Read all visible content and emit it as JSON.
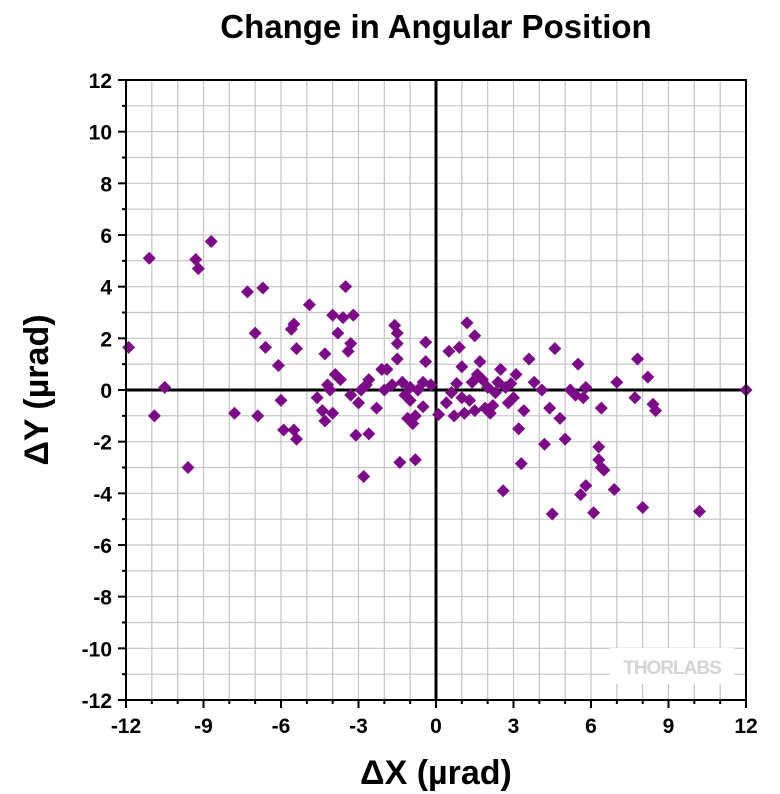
{
  "chart_data": {
    "type": "scatter",
    "title": "Change in Angular Position",
    "xlabel": "ΔX (µrad)",
    "ylabel": "ΔY (µrad)",
    "xlim": [
      -12,
      12
    ],
    "ylim": [
      -12,
      12
    ],
    "xticks": [
      "-12",
      "-9",
      "-6",
      "-3",
      "0",
      "3",
      "6",
      "9",
      "12"
    ],
    "yticks": [
      "12",
      "10",
      "8",
      "6",
      "4",
      "2",
      "0",
      "-2",
      "-4",
      "-6",
      "-8",
      "-10",
      "-12"
    ],
    "grid": true,
    "marker": "diamond",
    "marker_color": "#7b0a87",
    "watermark": "THORLABS",
    "points": [
      [
        -11.9,
        1.65
      ],
      [
        -11.1,
        5.1
      ],
      [
        -10.9,
        -1.0
      ],
      [
        -10.5,
        0.1
      ],
      [
        -9.6,
        -3.0
      ],
      [
        -9.3,
        5.05
      ],
      [
        -9.2,
        4.7
      ],
      [
        -8.7,
        5.75
      ],
      [
        -7.8,
        -0.9
      ],
      [
        -7.3,
        3.8
      ],
      [
        -7.0,
        2.2
      ],
      [
        -6.9,
        -1.0
      ],
      [
        -6.7,
        3.95
      ],
      [
        -6.6,
        1.65
      ],
      [
        -6.1,
        0.95
      ],
      [
        -6.0,
        -0.4
      ],
      [
        -5.9,
        -1.55
      ],
      [
        -5.6,
        2.35
      ],
      [
        -5.5,
        2.55
      ],
      [
        -5.5,
        -1.55
      ],
      [
        -5.4,
        -1.9
      ],
      [
        -5.4,
        1.6
      ],
      [
        -4.9,
        3.3
      ],
      [
        -4.6,
        -0.3
      ],
      [
        -4.4,
        -0.8
      ],
      [
        -4.3,
        1.4
      ],
      [
        -4.3,
        -1.2
      ],
      [
        -4.2,
        0.2
      ],
      [
        -4.1,
        0.0
      ],
      [
        -4.0,
        2.9
      ],
      [
        -4.0,
        -0.9
      ],
      [
        -3.9,
        0.6
      ],
      [
        -3.8,
        2.2
      ],
      [
        -3.7,
        0.4
      ],
      [
        -3.6,
        2.8
      ],
      [
        -3.5,
        4.0
      ],
      [
        -3.4,
        1.5
      ],
      [
        -3.3,
        1.8
      ],
      [
        -3.3,
        -0.2
      ],
      [
        -3.2,
        2.9
      ],
      [
        -3.1,
        -1.75
      ],
      [
        -3.0,
        -0.5
      ],
      [
        -2.9,
        0.0
      ],
      [
        -2.8,
        -3.35
      ],
      [
        -2.7,
        0.2
      ],
      [
        -2.6,
        -1.7
      ],
      [
        -2.6,
        0.4
      ],
      [
        -2.3,
        -0.7
      ],
      [
        -2.1,
        0.8
      ],
      [
        -2.0,
        0.0
      ],
      [
        -1.9,
        0.8
      ],
      [
        -1.7,
        0.2
      ],
      [
        -1.6,
        2.5
      ],
      [
        -1.5,
        1.8
      ],
      [
        -1.5,
        2.2
      ],
      [
        -1.5,
        1.2
      ],
      [
        -1.4,
        -2.8
      ],
      [
        -1.3,
        0.3
      ],
      [
        -1.2,
        -0.2
      ],
      [
        -1.1,
        -1.1
      ],
      [
        -1.0,
        0.1
      ],
      [
        -1.0,
        -0.4
      ],
      [
        -0.9,
        -1.3
      ],
      [
        -0.8,
        -2.7
      ],
      [
        -0.8,
        -1.0
      ],
      [
        -0.7,
        0.0
      ],
      [
        -0.5,
        0.3
      ],
      [
        -0.5,
        -0.65
      ],
      [
        -0.4,
        1.85
      ],
      [
        -0.4,
        1.1
      ],
      [
        -0.2,
        0.2
      ],
      [
        0.1,
        -0.95
      ],
      [
        0.4,
        -0.5
      ],
      [
        0.5,
        1.5
      ],
      [
        0.6,
        -0.1
      ],
      [
        0.7,
        -1.0
      ],
      [
        0.8,
        0.25
      ],
      [
        0.9,
        1.65
      ],
      [
        1.0,
        0.9
      ],
      [
        1.0,
        -0.3
      ],
      [
        1.1,
        -0.9
      ],
      [
        1.2,
        2.6
      ],
      [
        1.3,
        -0.4
      ],
      [
        1.4,
        0.3
      ],
      [
        1.5,
        -0.8
      ],
      [
        1.5,
        2.1
      ],
      [
        1.6,
        0.6
      ],
      [
        1.7,
        1.1
      ],
      [
        1.8,
        0.4
      ],
      [
        1.9,
        -0.7
      ],
      [
        2.0,
        0.1
      ],
      [
        2.1,
        -0.9
      ],
      [
        2.2,
        -0.6
      ],
      [
        2.3,
        -0.1
      ],
      [
        2.4,
        0.3
      ],
      [
        2.5,
        0.8
      ],
      [
        2.6,
        -3.9
      ],
      [
        2.7,
        0.1
      ],
      [
        2.8,
        -0.5
      ],
      [
        2.9,
        0.25
      ],
      [
        3.0,
        -0.3
      ],
      [
        3.1,
        0.6
      ],
      [
        3.2,
        -1.5
      ],
      [
        3.3,
        -2.85
      ],
      [
        3.4,
        -0.8
      ],
      [
        3.6,
        1.2
      ],
      [
        3.8,
        0.3
      ],
      [
        4.1,
        0.0
      ],
      [
        4.2,
        -2.1
      ],
      [
        4.4,
        -0.7
      ],
      [
        4.5,
        -4.8
      ],
      [
        4.6,
        1.6
      ],
      [
        4.8,
        -1.1
      ],
      [
        5.0,
        -1.9
      ],
      [
        5.2,
        0.0
      ],
      [
        5.4,
        -0.2
      ],
      [
        5.5,
        1.0
      ],
      [
        5.6,
        -4.05
      ],
      [
        5.7,
        -0.3
      ],
      [
        5.8,
        0.1
      ],
      [
        5.8,
        -3.7
      ],
      [
        6.1,
        -4.75
      ],
      [
        6.3,
        -2.2
      ],
      [
        6.3,
        -2.7
      ],
      [
        6.4,
        -3.0
      ],
      [
        6.4,
        -0.7
      ],
      [
        6.5,
        -3.1
      ],
      [
        6.9,
        -3.85
      ],
      [
        7.0,
        0.3
      ],
      [
        7.7,
        -0.3
      ],
      [
        7.8,
        1.2
      ],
      [
        8.0,
        -4.55
      ],
      [
        8.2,
        0.5
      ],
      [
        8.4,
        -0.55
      ],
      [
        8.5,
        -0.8
      ],
      [
        10.2,
        -4.7
      ],
      [
        12.0,
        0.0
      ]
    ]
  }
}
